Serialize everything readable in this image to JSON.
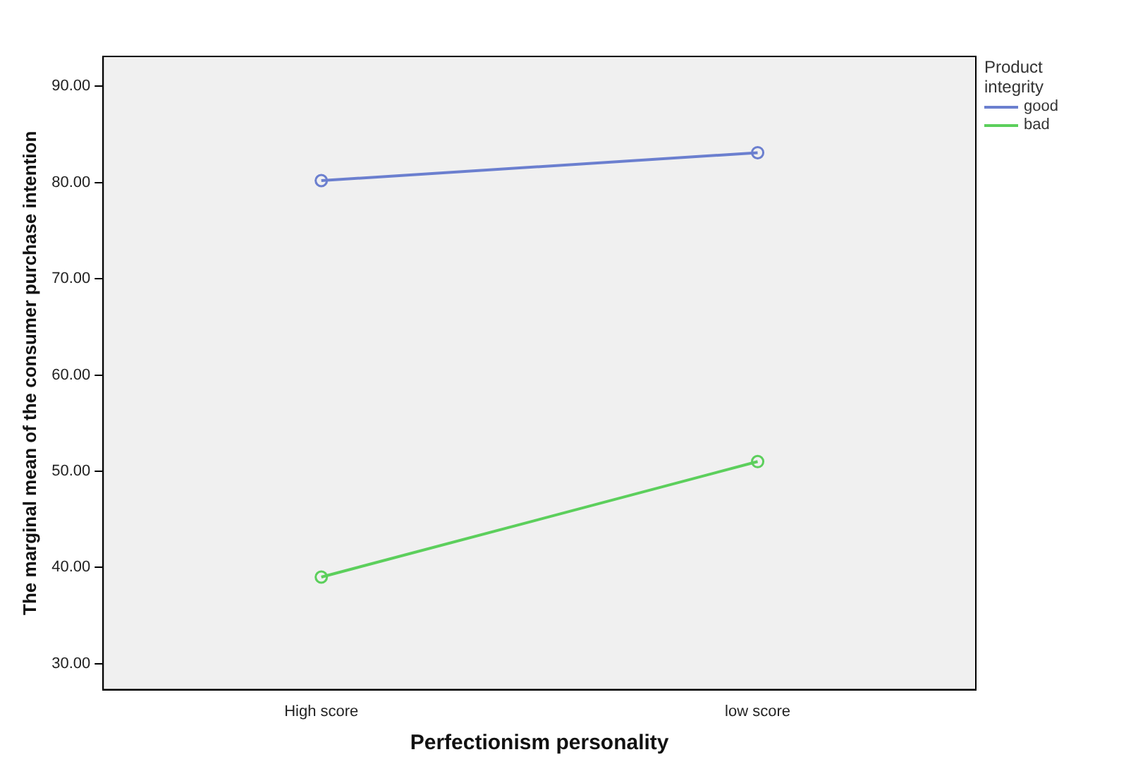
{
  "chart_data": {
    "type": "line",
    "xlabel": "Perfectionism personality",
    "ylabel": "The marginal mean of the consumer purchase intention",
    "legend_title": "Product integrity",
    "legend": "top right",
    "marker": "circle",
    "grid": false,
    "categories": [
      "High score",
      "low score"
    ],
    "series": [
      {
        "name": "good",
        "color": "#6b7fcf",
        "values": [
          80.2,
          83.1
        ]
      },
      {
        "name": "bad",
        "color": "#5ccf5c",
        "values": [
          39.0,
          51.0
        ]
      }
    ],
    "ylim": [
      27.3,
      93.1
    ],
    "yticks": [
      {
        "value": 30,
        "label": "30.00"
      },
      {
        "value": 40,
        "label": "40.00"
      },
      {
        "value": 50,
        "label": "50.00"
      },
      {
        "value": 60,
        "label": "60.00"
      },
      {
        "value": 70,
        "label": "70.00"
      },
      {
        "value": 80,
        "label": "80.00"
      },
      {
        "value": 90,
        "label": "90.00"
      }
    ]
  }
}
